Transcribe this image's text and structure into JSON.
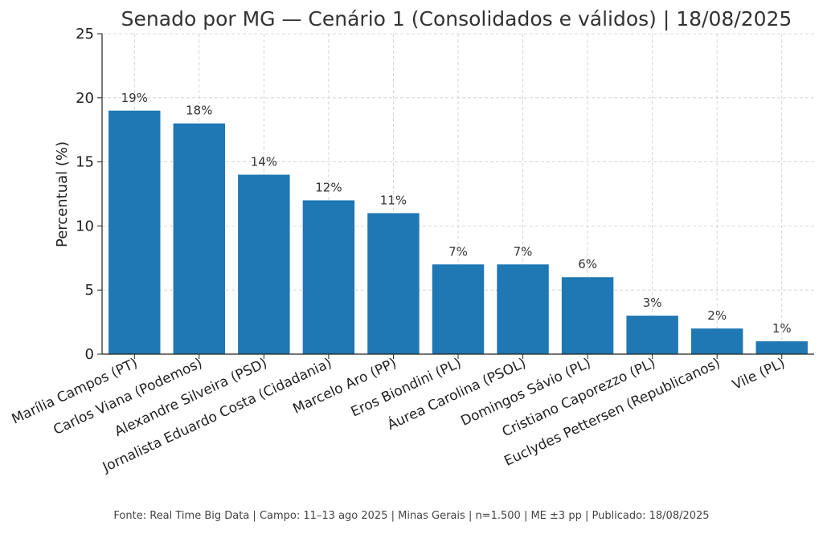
{
  "chart_data": {
    "type": "bar",
    "title": "Senado por MG — Cenário 1 (Consolidados e válidos) | 18/08/2025",
    "xlabel": "",
    "ylabel": "Percentual (%)",
    "ylim": [
      0,
      25
    ],
    "yticks": [
      0,
      5,
      10,
      15,
      20,
      25
    ],
    "grid": true,
    "categories": [
      "Marília Campos (PT)",
      "Carlos Viana (Podemos)",
      "Alexandre Silveira (PSD)",
      "Jornalista Eduardo Costa (Cidadania)",
      "Marcelo Aro (PP)",
      "Eros Biondini (PL)",
      "Áurea Carolina (PSOL)",
      "Domingos Sávio (PL)",
      "Cristiano Caporezzo (PL)",
      "Euclydes Pettersen (Republicanos)",
      "Vile (PL)"
    ],
    "values": [
      19,
      18,
      14,
      12,
      11,
      7,
      7,
      6,
      3,
      2,
      1
    ],
    "data_labels": [
      "19%",
      "18%",
      "14%",
      "12%",
      "11%",
      "7%",
      "7%",
      "6%",
      "3%",
      "2%",
      "1%"
    ],
    "bar_color": "#1f77b4"
  },
  "footer": "Fonte: Real Time Big Data | Campo: 11–13 ago 2025 | Minas Gerais | n=1.500 | ME ±3 pp | Publicado: 18/08/2025"
}
